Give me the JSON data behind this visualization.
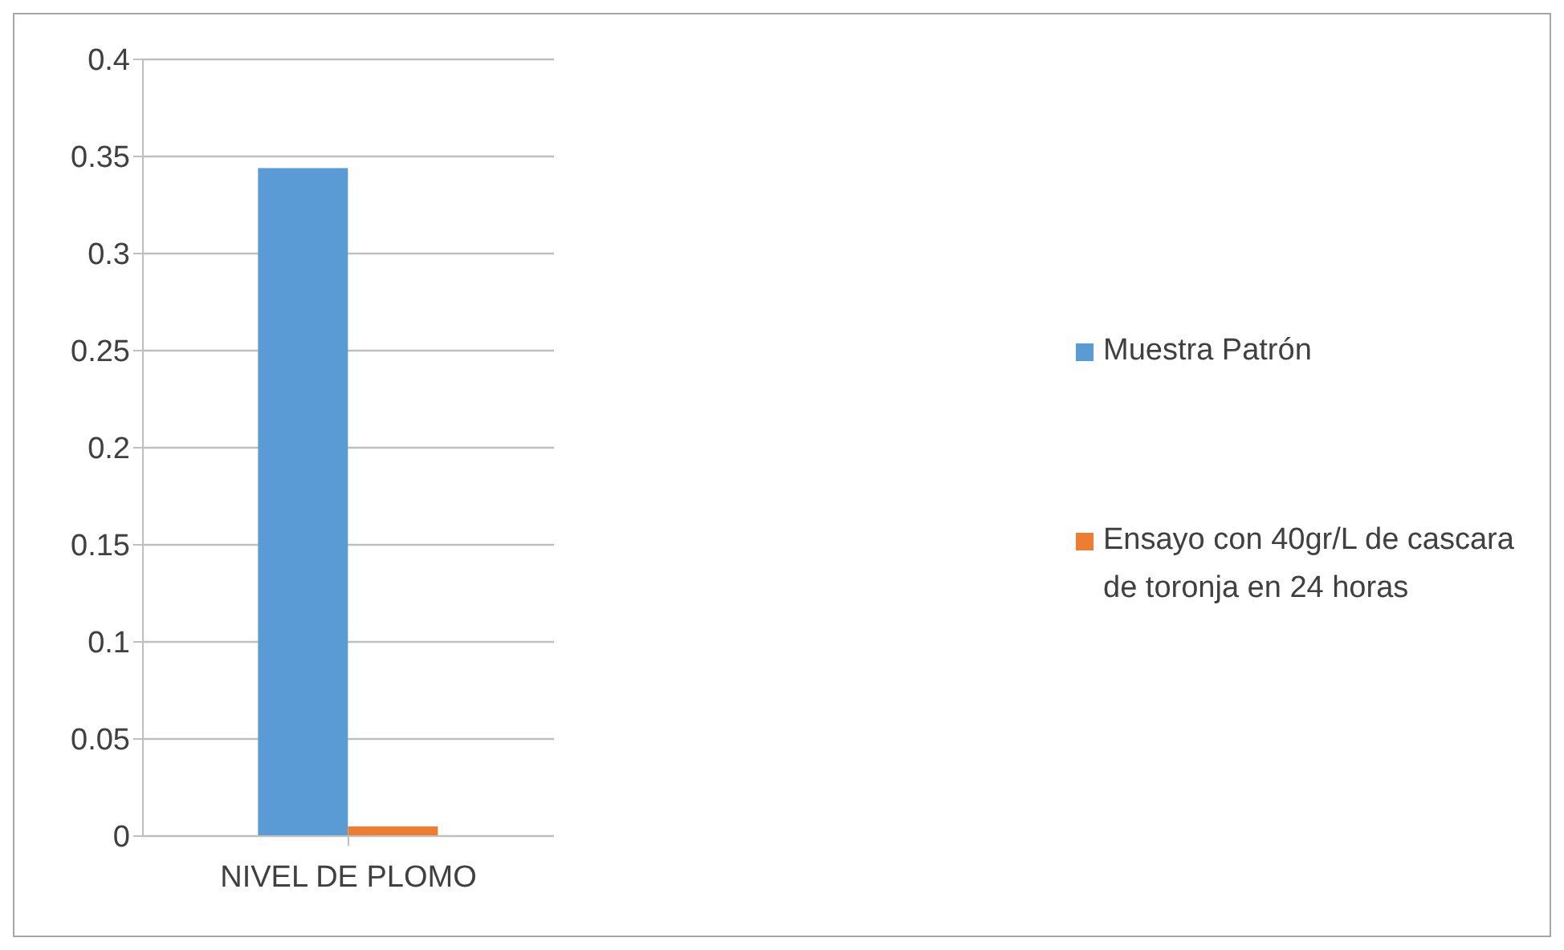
{
  "chart_data": {
    "type": "bar",
    "categories": [
      "NIVEL DE PLOMO"
    ],
    "series": [
      {
        "name": "Muestra Patrón",
        "color": "#5b9bd5",
        "values": [
          0.344
        ]
      },
      {
        "name": "Ensayo con 40gr/L de cascara de toronja en 24 horas",
        "color": "#ed7d31",
        "values": [
          0.005
        ]
      }
    ],
    "ylim": [
      0,
      0.4
    ],
    "yticks": [
      0,
      0.05,
      0.1,
      0.15,
      0.2,
      0.25,
      0.3,
      0.35,
      0.4
    ],
    "grid": "y",
    "legend": "right"
  }
}
